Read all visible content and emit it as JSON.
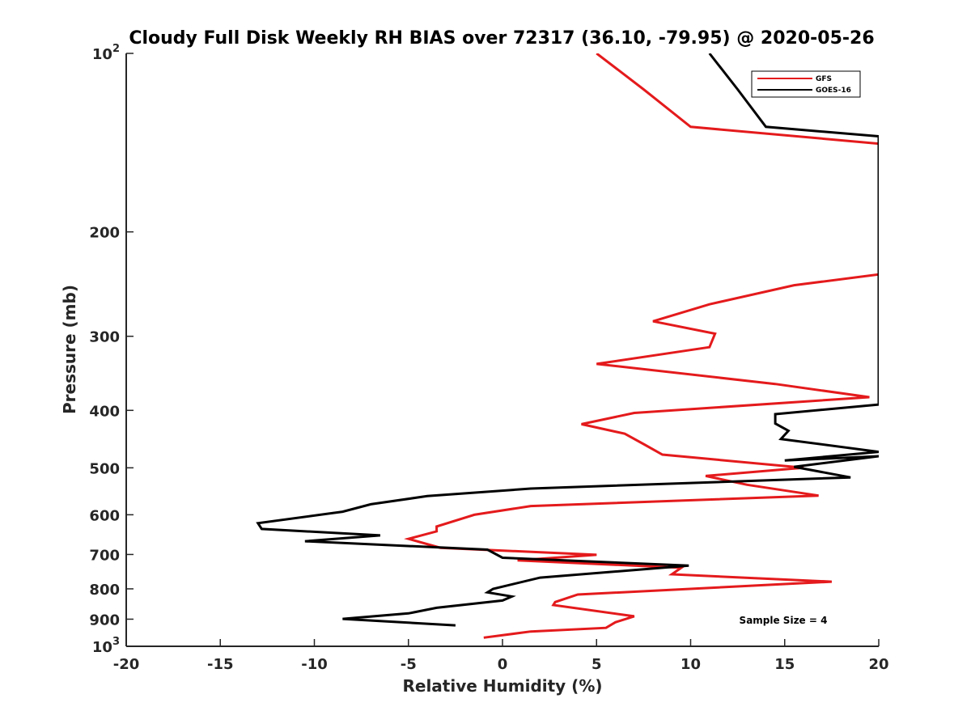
{
  "chart_data": {
    "type": "line",
    "title": "Cloudy Full Disk Weekly RH BIAS over 72317 (36.10, -79.95) @ 2020-05-26",
    "xlabel": "Relative Humidity (%)",
    "ylabel": "Pressure (mb)",
    "xlim": [
      -20,
      20
    ],
    "ylim": [
      100,
      1000
    ],
    "y_scale": "log",
    "y_reversed": true,
    "x_ticks": [
      "-20",
      "-15",
      "-10",
      "-5",
      "0",
      "5",
      "10",
      "15",
      "20"
    ],
    "y_ticks": [
      {
        "value": 100,
        "base": "10",
        "exp": "2"
      },
      {
        "value": 200,
        "label": "200"
      },
      {
        "value": 300,
        "label": "300"
      },
      {
        "value": 400,
        "label": "400"
      },
      {
        "value": 500,
        "label": "500"
      },
      {
        "value": 600,
        "label": "600"
      },
      {
        "value": 700,
        "label": "700"
      },
      {
        "value": 800,
        "label": "800"
      },
      {
        "value": 900,
        "label": "900"
      },
      {
        "value": 1000,
        "base": "10",
        "exp": "3"
      }
    ],
    "legend_position": "top-right",
    "annotation": "Sample Size = 4",
    "series": [
      {
        "name": "GFS",
        "color": "#e41a1c",
        "points": [
          [
            5.0,
            100
          ],
          [
            7.5,
            115
          ],
          [
            10.0,
            133
          ],
          [
            20.0,
            142
          ],
          [
            20.0,
            236
          ],
          [
            15.5,
            246
          ],
          [
            11.0,
            265
          ],
          [
            8.0,
            283
          ],
          [
            11.3,
            297
          ],
          [
            11.0,
            313
          ],
          [
            5.0,
            334
          ],
          [
            14.5,
            361
          ],
          [
            19.5,
            380
          ],
          [
            7.0,
            404
          ],
          [
            4.2,
            422
          ],
          [
            6.5,
            438
          ],
          [
            7.5,
            456
          ],
          [
            8.5,
            475
          ],
          [
            16.0,
            500
          ],
          [
            10.8,
            516
          ],
          [
            13.0,
            534
          ],
          [
            16.8,
            557
          ],
          [
            1.5,
            580
          ],
          [
            -1.5,
            600
          ],
          [
            -3.5,
            628
          ],
          [
            -3.5,
            640
          ],
          [
            -5.0,
            659
          ],
          [
            -3.3,
            682
          ],
          [
            5.0,
            701
          ],
          [
            0.8,
            716
          ],
          [
            9.5,
            737
          ],
          [
            9.0,
            756
          ],
          [
            17.5,
            778
          ],
          [
            4.0,
            818
          ],
          [
            2.8,
            842
          ],
          [
            2.7,
            852
          ],
          [
            7.0,
            890
          ],
          [
            6.0,
            911
          ],
          [
            5.5,
            931
          ],
          [
            1.5,
            944
          ],
          [
            -1.0,
            967
          ]
        ]
      },
      {
        "name": "GOES-16",
        "color": "#000000",
        "points": [
          [
            11.0,
            100
          ],
          [
            12.5,
            115
          ],
          [
            14.0,
            133
          ],
          [
            20.0,
            138
          ],
          [
            20.0,
            391
          ],
          [
            14.5,
            406
          ],
          [
            14.5,
            421
          ],
          [
            15.2,
            433
          ],
          [
            14.8,
            447
          ],
          [
            20.0,
            470
          ],
          [
            15.0,
            486
          ],
          [
            20.0,
            478
          ],
          [
            15.5,
            498
          ],
          [
            18.5,
            519
          ],
          [
            1.5,
            542
          ],
          [
            -4.0,
            558
          ],
          [
            -7.0,
            576
          ],
          [
            -8.5,
            593
          ],
          [
            -13.0,
            620
          ],
          [
            -12.8,
            634
          ],
          [
            -6.5,
            650
          ],
          [
            -10.5,
            665
          ],
          [
            -0.8,
            687
          ],
          [
            0.0,
            709
          ],
          [
            9.9,
            731
          ],
          [
            2.0,
            766
          ],
          [
            -0.5,
            800
          ],
          [
            -0.8,
            811
          ],
          [
            0.5,
            824
          ],
          [
            0.0,
            837
          ],
          [
            -3.5,
            861
          ],
          [
            -5.0,
            880
          ],
          [
            -8.5,
            899
          ],
          [
            -2.5,
            922
          ]
        ]
      }
    ]
  }
}
